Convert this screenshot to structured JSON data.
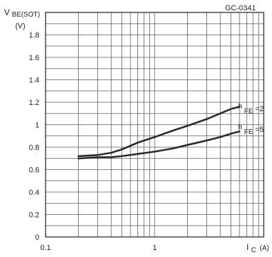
{
  "figure_code": "GC-0341",
  "y_axis": {
    "label_main": "V",
    "label_sub": "BE(SOT)",
    "unit": "(V)"
  },
  "x_axis": {
    "label_main": "I",
    "label_sub": "C",
    "unit": "(A)"
  },
  "series_labels": [
    {
      "prefix": "h",
      "sub": "FE",
      "suffix": "=2"
    },
    {
      "prefix": "h",
      "sub": "FE",
      "suffix": "=5"
    }
  ],
  "chart_data": {
    "type": "line",
    "title": "",
    "xlabel": "IC (A)",
    "ylabel": "VBE(SOT) (V)",
    "xscale": "log",
    "xlim": [
      0.1,
      10
    ],
    "ylim": [
      0,
      2
    ],
    "grid": true,
    "x_ticks": [
      "0.1",
      "1"
    ],
    "y_ticks": [
      "0",
      "0.2",
      "0.4",
      "0.6",
      "0.8",
      "1",
      "1.2",
      "1.4",
      "1.6",
      "1.8"
    ],
    "series": [
      {
        "name": "hFE=2",
        "x": [
          0.2,
          0.3,
          0.4,
          0.5,
          0.7,
          1,
          1.5,
          2,
          3,
          4,
          5,
          6
        ],
        "y": [
          0.72,
          0.73,
          0.75,
          0.78,
          0.84,
          0.89,
          0.95,
          0.99,
          1.05,
          1.1,
          1.14,
          1.16
        ]
      },
      {
        "name": "hFE=5",
        "x": [
          0.2,
          0.3,
          0.4,
          0.5,
          0.7,
          1,
          1.5,
          2,
          3,
          4,
          5,
          6
        ],
        "y": [
          0.7,
          0.71,
          0.71,
          0.72,
          0.74,
          0.76,
          0.79,
          0.82,
          0.86,
          0.89,
          0.92,
          0.94
        ]
      }
    ]
  }
}
